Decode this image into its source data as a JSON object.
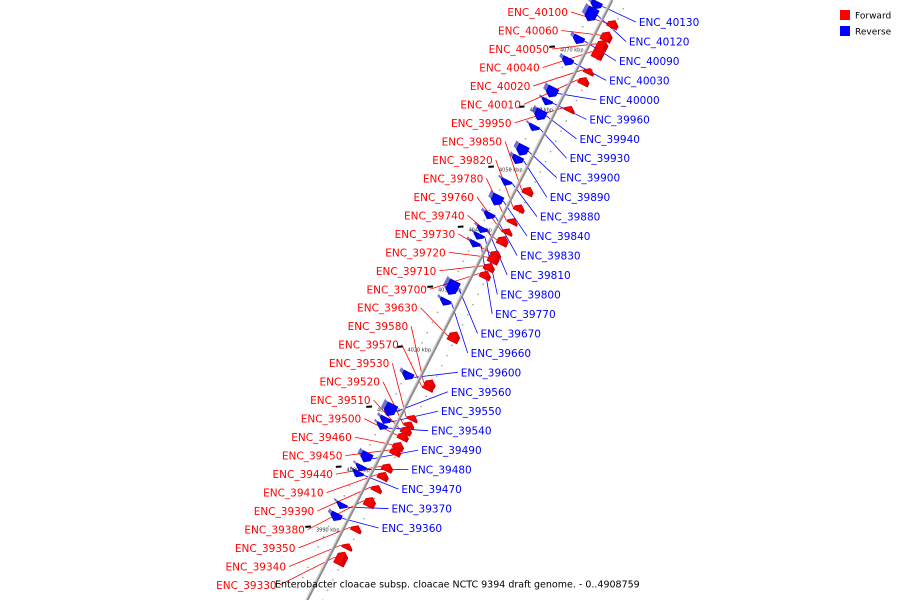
{
  "title": "Enterobacter cloacae subsp. cloacae NCTC 9394 draft genome. - 0..4908759",
  "legend": [
    {
      "key": "forward",
      "label": "Forward",
      "color": "#ff0000"
    },
    {
      "key": "reverse",
      "label": "Reverse",
      "color": "#0000ff"
    }
  ],
  "colors": {
    "forward": "#ff0000",
    "reverse": "#0000ff",
    "backbone": "#8c8c8c",
    "forward_dark": "#b80000",
    "reverse_dark": "#0000a8"
  },
  "ticks": [
    {
      "kb": 3990,
      "label": "3990 kbp"
    },
    {
      "kb": 4000,
      "label": "4000 kbp"
    },
    {
      "kb": 4010,
      "label": "4010 kbp"
    },
    {
      "kb": 4020,
      "label": "4020 kbp"
    },
    {
      "kb": 4030,
      "label": "4030 kbp"
    },
    {
      "kb": 4040,
      "label": "4040 kbp"
    },
    {
      "kb": 4050,
      "label": "4050 kbp"
    },
    {
      "kb": 4060,
      "label": "4060 kbp"
    },
    {
      "kb": 4070,
      "label": "4070 kbp"
    }
  ],
  "forward_genes": [
    {
      "label": "ENC_40100",
      "kb": 4076.3,
      "len": 0.6
    },
    {
      "label": "ENC_40060",
      "kb": 4074.1,
      "len": 0.9
    },
    {
      "label": "ENC_40050",
      "kb": 4072.6,
      "len": 1.0
    },
    {
      "label": "ENC_40040",
      "kb": 4071.2,
      "len": 1.2
    },
    {
      "label": "ENC_40020",
      "kb": 4068.6,
      "len": 0.3
    },
    {
      "label": "ENC_40010",
      "kb": 4066.8,
      "len": 0.6
    },
    {
      "label": "ENC_39950",
      "kb": 4062.3,
      "len": 0.3
    },
    {
      "label": "ENC_39850",
      "kb": 4048.5,
      "len": 0.6
    },
    {
      "label": "ENC_39820",
      "kb": 4045.7,
      "len": 0.5
    },
    {
      "label": "ENC_39780",
      "kb": 4043.6,
      "len": 0.3
    },
    {
      "label": "ENC_39760",
      "kb": 4041.9,
      "len": 0.3
    },
    {
      "label": "ENC_39740",
      "kb": 4040.1,
      "len": 0.8
    },
    {
      "label": "ENC_39730",
      "kb": 4038.2,
      "len": 0.3
    },
    {
      "label": "ENC_39720",
      "kb": 4037.1,
      "len": 0.9
    },
    {
      "label": "ENC_39710",
      "kb": 4035.8,
      "len": 0.6
    },
    {
      "label": "ENC_39700",
      "kb": 4034.5,
      "len": 0.6
    },
    {
      "label": "ENC_39630",
      "kb": 4024.0,
      "len": 1.0
    },
    {
      "label": "ENC_39580",
      "kb": 4016.4,
      "len": 0.6
    },
    {
      "label": "ENC_39570",
      "kb": 4015.9,
      "len": 0.3
    },
    {
      "label": "ENC_39530",
      "kb": 4010.8,
      "len": 0.3
    },
    {
      "label": "ENC_39520",
      "kb": 4009.7,
      "len": 0.3
    },
    {
      "label": "ENC_39510",
      "kb": 4008.6,
      "len": 0.6
    },
    {
      "label": "ENC_39500",
      "kb": 4007.6,
      "len": 0.6
    },
    {
      "label": "ENC_39460",
      "kb": 4006.0,
      "len": 0.6
    },
    {
      "label": "ENC_39450",
      "kb": 4005.1,
      "len": 0.6
    },
    {
      "label": "ENC_39440",
      "kb": 4002.4,
      "len": 0.6
    },
    {
      "label": "ENC_39410",
      "kb": 4001.0,
      "len": 0.6
    },
    {
      "label": "ENC_39390",
      "kb": 3999.0,
      "len": 0.4
    },
    {
      "label": "ENC_39380",
      "kb": 3996.5,
      "len": 0.9
    },
    {
      "label": "ENC_39350",
      "kb": 3992.3,
      "len": 0.4
    },
    {
      "label": "ENC_39340",
      "kb": 3989.4,
      "len": 0.3
    },
    {
      "label": "ENC_39330",
      "kb": 3986.8,
      "len": 1.5
    }
  ],
  "reverse_genes": [
    {
      "label": "ENC_40130",
      "kb": 4078.2,
      "len": 0.6
    },
    {
      "label": "ENC_40120",
      "kb": 4076.2,
      "len": 1.5
    },
    {
      "label": "ENC_40090",
      "kb": 4072.4,
      "len": 0.6
    },
    {
      "label": "ENC_40030",
      "kb": 4068.8,
      "len": 0.6
    },
    {
      "label": "ENC_40000",
      "kb": 4063.5,
      "len": 1.0
    },
    {
      "label": "ENC_39960",
      "kb": 4062.2,
      "len": 0.3
    },
    {
      "label": "ENC_39940",
      "kb": 4059.7,
      "len": 1.0
    },
    {
      "label": "ENC_39930",
      "kb": 4057.9,
      "len": 0.3
    },
    {
      "label": "ENC_39900",
      "kb": 4053.8,
      "len": 1.0
    },
    {
      "label": "ENC_39890",
      "kb": 4052.4,
      "len": 0.6
    },
    {
      "label": "ENC_39880",
      "kb": 4048.8,
      "len": 0.3
    },
    {
      "label": "ENC_39840",
      "kb": 4045.5,
      "len": 1.0
    },
    {
      "label": "ENC_39830",
      "kb": 4043.2,
      "len": 0.4
    },
    {
      "label": "ENC_39810",
      "kb": 4040.9,
      "len": 0.3
    },
    {
      "label": "ENC_39800",
      "kb": 4039.8,
      "len": 0.3
    },
    {
      "label": "ENC_39770",
      "kb": 4038.5,
      "len": 0.3
    },
    {
      "label": "ENC_39670",
      "kb": 4030.6,
      "len": 1.6
    },
    {
      "label": "ENC_39660",
      "kb": 4028.8,
      "len": 0.4
    },
    {
      "label": "ENC_39600",
      "kb": 4016.4,
      "len": 0.6
    },
    {
      "label": "ENC_39560",
      "kb": 4010.4,
      "len": 1.3
    },
    {
      "label": "ENC_39550",
      "kb": 4009.1,
      "len": 0.4
    },
    {
      "label": "ENC_39540",
      "kb": 4008.1,
      "len": 0.3
    },
    {
      "label": "ENC_39490",
      "kb": 4002.7,
      "len": 0.9
    },
    {
      "label": "ENC_39480",
      "kb": 4001.2,
      "len": 0.3
    },
    {
      "label": "ENC_39470",
      "kb": 4000.2,
      "len": 0.3
    },
    {
      "label": "ENC_39370",
      "kb": 3994.9,
      "len": 0.3
    },
    {
      "label": "ENC_39360",
      "kb": 3992.9,
      "len": 0.6
    }
  ]
}
